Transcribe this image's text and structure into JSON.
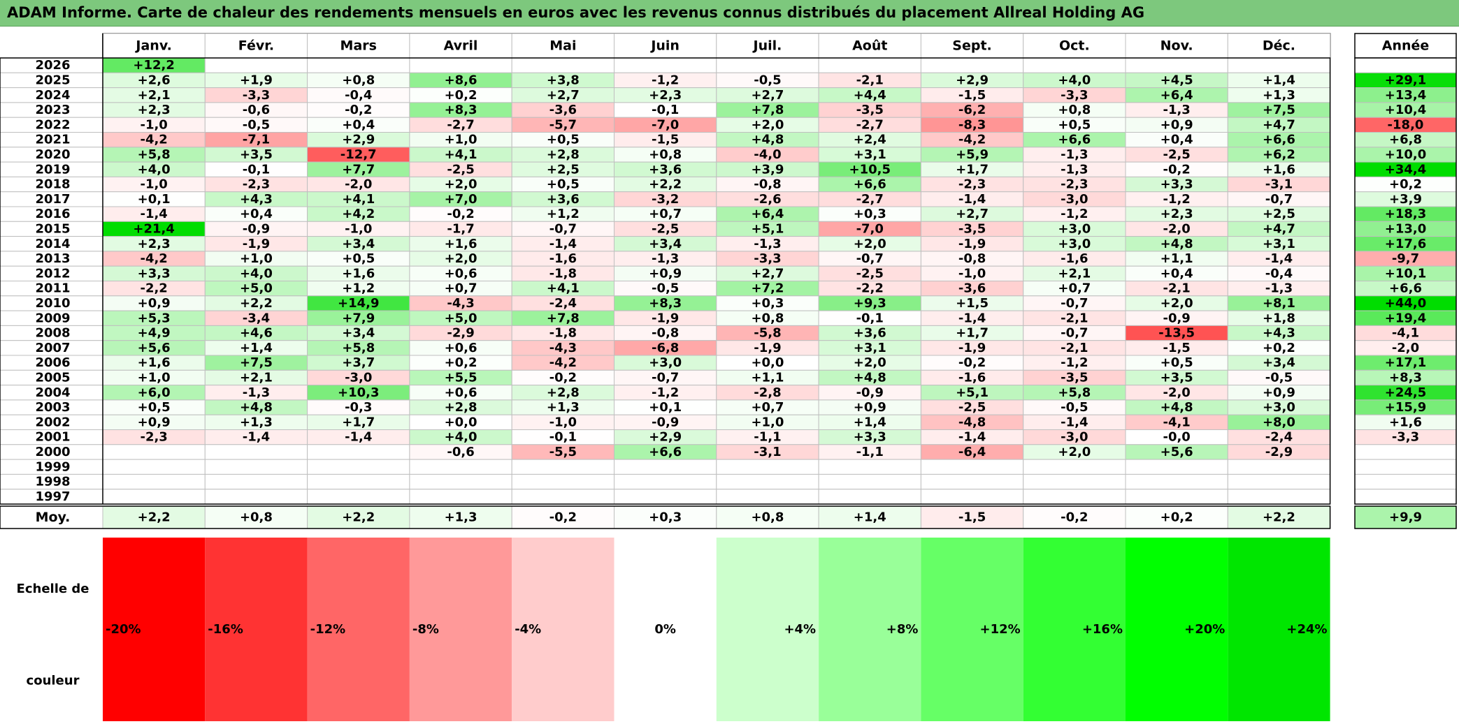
{
  "title": "ADAM Informe. Carte de chaleur des rendements mensuels en euros avec les revenus connus distribués du placement Allreal Holding AG",
  "chart_data": {
    "type": "heatmap",
    "months": [
      "Janv.",
      "Févr.",
      "Mars",
      "Avril",
      "Mai",
      "Juin",
      "Juil.",
      "Août",
      "Sept.",
      "Oct.",
      "Nov.",
      "Déc."
    ],
    "year_header": "Année",
    "rows": [
      {
        "year": "2026",
        "values": [
          "+12,2",
          "",
          "",
          "",
          "",
          "",
          "",
          "",
          "",
          "",
          "",
          ""
        ],
        "annual": ""
      },
      {
        "year": "2025",
        "values": [
          "+2,6",
          "+1,9",
          "+0,8",
          "+8,6",
          "+3,8",
          "-1,2",
          "-0,5",
          "-2,1",
          "+2,9",
          "+4,0",
          "+4,5",
          "+1,4"
        ],
        "annual": "+29,1"
      },
      {
        "year": "2024",
        "values": [
          "+2,1",
          "-3,3",
          "-0,4",
          "+0,2",
          "+2,7",
          "+2,3",
          "+2,7",
          "+4,4",
          "-1,5",
          "-3,3",
          "+6,4",
          "+1,3"
        ],
        "annual": "+13,4"
      },
      {
        "year": "2023",
        "values": [
          "+2,3",
          "-0,6",
          "-0,2",
          "+8,3",
          "-3,6",
          "-0,1",
          "+7,8",
          "-3,5",
          "-6,2",
          "+0,8",
          "-1,3",
          "+7,5"
        ],
        "annual": "+10,4"
      },
      {
        "year": "2022",
        "values": [
          "-1,0",
          "-0,5",
          "+0,4",
          "-2,7",
          "-5,7",
          "-7,0",
          "+2,0",
          "-2,7",
          "-8,3",
          "+0,5",
          "+0,9",
          "+4,7"
        ],
        "annual": "-18,0"
      },
      {
        "year": "2021",
        "values": [
          "-4,2",
          "-7,1",
          "+2,9",
          "+1,0",
          "+0,5",
          "-1,5",
          "+4,8",
          "+2,4",
          "-4,2",
          "+6,6",
          "+0,4",
          "+6,6"
        ],
        "annual": "+6,8"
      },
      {
        "year": "2020",
        "values": [
          "+5,8",
          "+3,5",
          "-12,7",
          "+4,1",
          "+2,8",
          "+0,8",
          "-4,0",
          "+3,1",
          "+5,9",
          "-1,3",
          "-2,5",
          "+6,2"
        ],
        "annual": "+10,0"
      },
      {
        "year": "2019",
        "values": [
          "+4,0",
          "-0,1",
          "+7,7",
          "-2,5",
          "+2,5",
          "+3,6",
          "+3,9",
          "+10,5",
          "+1,7",
          "-1,3",
          "-0,2",
          "+1,6"
        ],
        "annual": "+34,4"
      },
      {
        "year": "2018",
        "values": [
          "-1,0",
          "-2,3",
          "-2,0",
          "+2,0",
          "+0,5",
          "+2,2",
          "-0,8",
          "+6,6",
          "-2,3",
          "-2,3",
          "+3,3",
          "-3,1"
        ],
        "annual": "+0,2"
      },
      {
        "year": "2017",
        "values": [
          "+0,1",
          "+4,3",
          "+4,1",
          "+7,0",
          "+3,6",
          "-3,2",
          "-2,6",
          "-2,7",
          "-1,4",
          "-3,0",
          "-1,2",
          "-0,7"
        ],
        "annual": "+3,9"
      },
      {
        "year": "2016",
        "values": [
          "-1,4",
          "+0,4",
          "+4,2",
          "-0,2",
          "+1,2",
          "+0,7",
          "+6,4",
          "+0,3",
          "+2,7",
          "-1,2",
          "+2,3",
          "+2,5"
        ],
        "annual": "+18,3"
      },
      {
        "year": "2015",
        "values": [
          "+21,4",
          "-0,9",
          "-1,0",
          "-1,7",
          "-0,7",
          "-2,5",
          "+5,1",
          "-7,0",
          "-3,5",
          "+3,0",
          "-2,0",
          "+4,7"
        ],
        "annual": "+13,0"
      },
      {
        "year": "2014",
        "values": [
          "+2,3",
          "-1,9",
          "+3,4",
          "+1,6",
          "-1,4",
          "+3,4",
          "-1,3",
          "+2,0",
          "-1,9",
          "+3,0",
          "+4,8",
          "+3,1"
        ],
        "annual": "+17,6"
      },
      {
        "year": "2013",
        "values": [
          "-4,2",
          "+1,0",
          "+0,5",
          "+2,0",
          "-1,6",
          "-1,3",
          "-3,3",
          "-0,7",
          "-0,8",
          "-1,6",
          "+1,1",
          "-1,4"
        ],
        "annual": "-9,7"
      },
      {
        "year": "2012",
        "values": [
          "+3,3",
          "+4,0",
          "+1,6",
          "+0,6",
          "-1,8",
          "+0,9",
          "+2,7",
          "-2,5",
          "-1,0",
          "+2,1",
          "+0,4",
          "-0,4"
        ],
        "annual": "+10,1"
      },
      {
        "year": "2011",
        "values": [
          "-2,2",
          "+5,0",
          "+1,2",
          "+0,7",
          "+4,1",
          "-0,5",
          "+7,2",
          "-2,2",
          "-3,6",
          "+0,7",
          "-2,1",
          "-1,3"
        ],
        "annual": "+6,6"
      },
      {
        "year": "2010",
        "values": [
          "+0,9",
          "+2,2",
          "+14,9",
          "-4,3",
          "-2,4",
          "+8,3",
          "+0,3",
          "+9,3",
          "+1,5",
          "-0,7",
          "+2,0",
          "+8,1"
        ],
        "annual": "+44,0"
      },
      {
        "year": "2009",
        "values": [
          "+5,3",
          "-3,4",
          "+7,9",
          "+5,0",
          "+7,8",
          "-1,9",
          "+0,8",
          "-0,1",
          "-1,4",
          "-2,1",
          "-0,9",
          "+1,8"
        ],
        "annual": "+19,4"
      },
      {
        "year": "2008",
        "values": [
          "+4,9",
          "+4,6",
          "+3,4",
          "-2,9",
          "-1,8",
          "-0,8",
          "-5,8",
          "+3,6",
          "+1,7",
          "-0,7",
          "-13,5",
          "+4,3"
        ],
        "annual": "-4,1"
      },
      {
        "year": "2007",
        "values": [
          "+5,6",
          "+1,4",
          "+5,8",
          "+0,6",
          "-4,3",
          "-6,8",
          "-1,9",
          "+3,1",
          "-1,9",
          "-2,1",
          "-1,5",
          "+0,2"
        ],
        "annual": "-2,0"
      },
      {
        "year": "2006",
        "values": [
          "+1,6",
          "+7,5",
          "+3,7",
          "+0,2",
          "-4,2",
          "+3,0",
          "+0,0",
          "+2,0",
          "-0,2",
          "-1,2",
          "+0,5",
          "+3,4"
        ],
        "annual": "+17,1"
      },
      {
        "year": "2005",
        "values": [
          "+1,0",
          "+2,1",
          "-3,0",
          "+5,5",
          "-0,2",
          "-0,7",
          "+1,1",
          "+4,8",
          "-1,6",
          "-3,5",
          "+3,5",
          "-0,5"
        ],
        "annual": "+8,3"
      },
      {
        "year": "2004",
        "values": [
          "+6,0",
          "-1,3",
          "+10,3",
          "+0,6",
          "+2,8",
          "-1,2",
          "-2,8",
          "-0,9",
          "+5,1",
          "+5,8",
          "-2,0",
          "+0,9"
        ],
        "annual": "+24,5"
      },
      {
        "year": "2003",
        "values": [
          "+0,5",
          "+4,8",
          "-0,3",
          "+2,8",
          "+1,3",
          "+0,1",
          "+0,7",
          "+0,9",
          "-2,5",
          "-0,5",
          "+4,8",
          "+3,0"
        ],
        "annual": "+15,9"
      },
      {
        "year": "2002",
        "values": [
          "+0,9",
          "+1,3",
          "+1,7",
          "+0,0",
          "-1,0",
          "-0,9",
          "+1,0",
          "+1,4",
          "-4,8",
          "-1,4",
          "-4,1",
          "+8,0"
        ],
        "annual": "+1,6"
      },
      {
        "year": "2001",
        "values": [
          "-2,3",
          "-1,4",
          "-1,4",
          "+4,0",
          "-0,1",
          "+2,9",
          "-1,1",
          "+3,3",
          "-1,4",
          "-3,0",
          "-0,0",
          "-2,4"
        ],
        "annual": "-3,3"
      },
      {
        "year": "2000",
        "values": [
          "",
          "",
          "",
          "-0,6",
          "-5,5",
          "+6,6",
          "-3,1",
          "-1,1",
          "-6,4",
          "+2,0",
          "+5,6",
          "-2,9"
        ],
        "annual": ""
      },
      {
        "year": "1999",
        "values": [
          "",
          "",
          "",
          "",
          "",
          "",
          "",
          "",
          "",
          "",
          "",
          ""
        ],
        "annual": ""
      },
      {
        "year": "1998",
        "values": [
          "",
          "",
          "",
          "",
          "",
          "",
          "",
          "",
          "",
          "",
          "",
          ""
        ],
        "annual": ""
      },
      {
        "year": "1997",
        "values": [
          "",
          "",
          "",
          "",
          "",
          "",
          "",
          "",
          "",
          "",
          "",
          ""
        ],
        "annual": ""
      }
    ],
    "average": {
      "label": "Moy.",
      "values": [
        "+2,2",
        "+0,8",
        "+2,2",
        "+1,3",
        "-0,2",
        "+0,3",
        "+0,8",
        "+1,4",
        "-1,5",
        "-0,2",
        "+0,2",
        "+2,2"
      ],
      "annual": "+9,9"
    },
    "scale": {
      "label_lines": [
        "Echelle de",
        "couleur"
      ],
      "stops": [
        {
          "label": "-20%",
          "value": -20,
          "color": "#ff0000"
        },
        {
          "label": "-16%",
          "value": -16,
          "color": "#ff3333"
        },
        {
          "label": "-12%",
          "value": -12,
          "color": "#ff6666"
        },
        {
          "label": "-8%",
          "value": -8,
          "color": "#ff9999"
        },
        {
          "label": "-4%",
          "value": -4,
          "color": "#ffcccc"
        },
        {
          "label": "0%",
          "value": 0,
          "color": "#ffffff"
        },
        {
          "label": "+4%",
          "value": 4,
          "color": "#ccffcc"
        },
        {
          "label": "+8%",
          "value": 8,
          "color": "#99ff99"
        },
        {
          "label": "+12%",
          "value": 12,
          "color": "#66ff66"
        },
        {
          "label": "+16%",
          "value": 16,
          "color": "#33ff33"
        },
        {
          "label": "+20%",
          "value": 20,
          "color": "#00ff00"
        },
        {
          "label": "+24%",
          "value": 24,
          "color": "#00e600"
        }
      ]
    },
    "colors": {
      "title_bar": "#7dc87d",
      "grid": "#bfbfbf",
      "border": "#000000",
      "negative_max": "#ff0000",
      "positive_max": "#00dd00"
    }
  }
}
